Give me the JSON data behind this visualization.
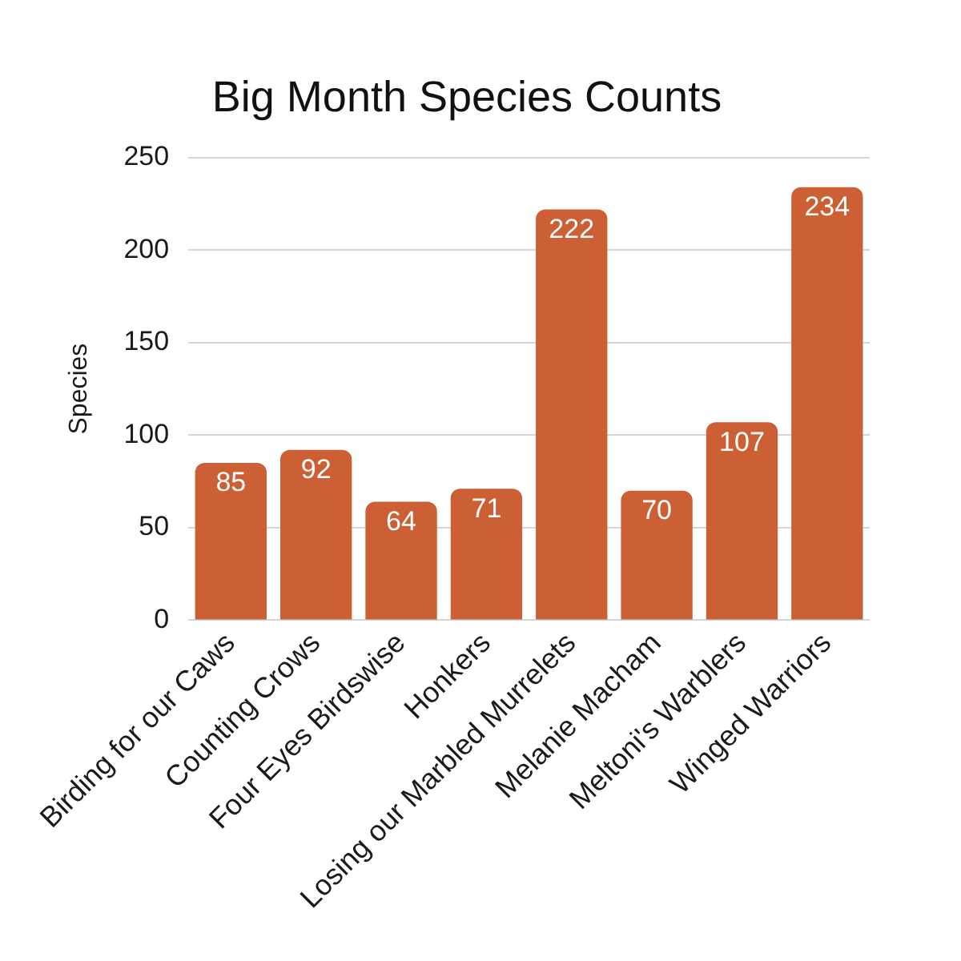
{
  "chart_data": {
    "type": "bar",
    "title": "Big Month Species Counts",
    "ylabel": "Species",
    "categories": [
      "Birding for our Caws",
      "Counting Crows",
      "Four Eyes Birdswise",
      "Honkers",
      "Losing our Marbled Murrelets",
      "Melanie Macham",
      "Meltoni's Warblers",
      "Winged Warriors"
    ],
    "values": [
      85,
      92,
      64,
      71,
      222,
      70,
      107,
      234
    ],
    "color": "#cc5f33",
    "ylim": [
      0,
      250
    ],
    "yticks": [
      0,
      50,
      100,
      150,
      200,
      250
    ],
    "grid": "y",
    "data_labels": true
  }
}
